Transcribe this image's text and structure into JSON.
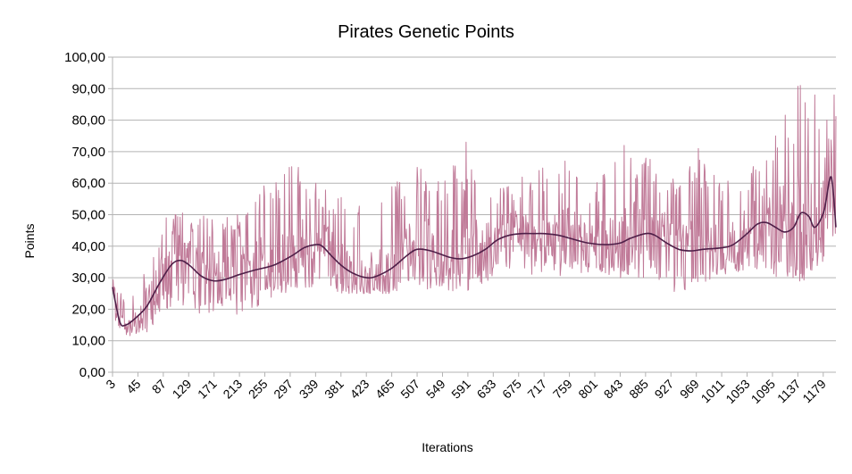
{
  "chart_data": {
    "type": "line",
    "title": "Pirates Genetic Points",
    "xlabel": "Iterations",
    "ylabel": "Points",
    "ylim": [
      0,
      100
    ],
    "yticks": [
      "0,00",
      "10,00",
      "20,00",
      "30,00",
      "40,00",
      "50,00",
      "60,00",
      "70,00",
      "80,00",
      "90,00",
      "100,00"
    ],
    "x_range": [
      3,
      1200
    ],
    "xticks": [
      3,
      45,
      87,
      129,
      171,
      213,
      255,
      297,
      339,
      381,
      423,
      465,
      507,
      549,
      591,
      633,
      675,
      717,
      759,
      801,
      843,
      885,
      927,
      969,
      1011,
      1053,
      1095,
      1137,
      1179
    ],
    "grid": "horizontal",
    "series_colors": {
      "raw": "#c07a98",
      "trend": "#4e1f48"
    },
    "trend": {
      "x": [
        3,
        15,
        25,
        40,
        60,
        80,
        100,
        115,
        130,
        150,
        170,
        190,
        213,
        240,
        270,
        300,
        320,
        339,
        350,
        365,
        381,
        400,
        423,
        440,
        465,
        490,
        507,
        530,
        560,
        580,
        600,
        620,
        640,
        660,
        680,
        700,
        717,
        740,
        760,
        790,
        820,
        843,
        860,
        885,
        900,
        920,
        940,
        960,
        980,
        1011,
        1030,
        1053,
        1070,
        1085,
        1100,
        1115,
        1130,
        1142,
        1155,
        1165,
        1180,
        1192,
        1200
      ],
      "y": [
        27,
        16,
        15,
        17,
        21,
        28,
        34,
        35.5,
        34,
        30.5,
        29,
        29.5,
        31,
        32.5,
        34,
        37,
        39.5,
        40.5,
        40,
        37,
        34,
        31.5,
        30,
        30.5,
        33,
        37,
        39,
        38.5,
        36.5,
        36,
        37,
        39,
        42,
        43.5,
        44,
        44,
        44,
        43.5,
        42.5,
        41,
        40.5,
        41,
        42.5,
        44,
        43.5,
        41,
        39,
        38.5,
        39,
        39.5,
        40.5,
        44,
        47,
        47.5,
        46,
        44.5,
        46,
        50.5,
        49.5,
        46,
        51,
        62,
        46
      ]
    },
    "raw_envelope": {
      "x": [
        3,
        20,
        45,
        60,
        87,
        129,
        171,
        213,
        255,
        297,
        339,
        381,
        423,
        465,
        507,
        549,
        591,
        633,
        675,
        717,
        759,
        801,
        843,
        885,
        927,
        969,
        1011,
        1053,
        1095,
        1137,
        1160,
        1179,
        1200
      ],
      "min": [
        18,
        11,
        12,
        12,
        20,
        20,
        17,
        18,
        22,
        26,
        27,
        25,
        25,
        25,
        27,
        25,
        26,
        30,
        32,
        30,
        29,
        32,
        30,
        30,
        25,
        27,
        30,
        32,
        30,
        28,
        30,
        35,
        35
      ],
      "max": [
        30,
        24,
        30,
        35,
        49,
        52,
        50,
        50,
        60,
        66,
        60,
        56,
        52,
        60,
        65,
        62,
        73,
        60,
        62,
        66,
        64,
        60,
        72,
        70,
        62,
        71,
        60,
        64,
        75,
        91,
        88,
        72,
        88
      ]
    },
    "spikes": [
      [
        92,
        49
      ],
      [
        225,
        50
      ],
      [
        296,
        65
      ],
      [
        310,
        65
      ],
      [
        339,
        60
      ],
      [
        507,
        65
      ],
      [
        588,
        73
      ],
      [
        752,
        67
      ],
      [
        850,
        72
      ],
      [
        972,
        71
      ],
      [
        1100,
        75
      ],
      [
        1141,
        91
      ],
      [
        1165,
        88
      ],
      [
        1185,
        80
      ],
      [
        1197,
        88
      ]
    ],
    "points_count": 1200,
    "seed": 7
  }
}
